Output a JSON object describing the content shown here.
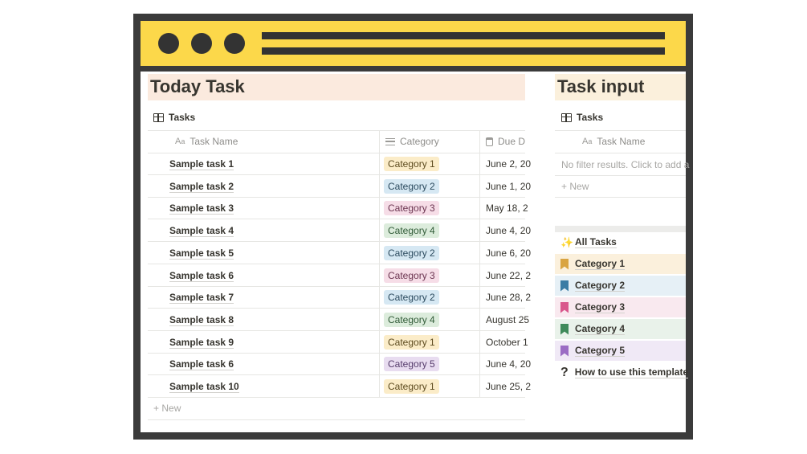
{
  "colors": {
    "titlebar": "#fcd84a",
    "frame": "#3b3b3b",
    "left_header_bg": "#fbeade",
    "right_header_bg": "#fbf0dc"
  },
  "left_panel": {
    "title": "Today Task",
    "db_title": "Tasks",
    "db_icon": "table-icon",
    "columns": [
      {
        "label": "Task Name",
        "icon": "Aa"
      },
      {
        "label": "Category",
        "icon": "list-icon"
      },
      {
        "label": "Due D",
        "icon": "calendar-icon"
      }
    ],
    "rows": [
      {
        "name": "Sample task 1",
        "category": "Category 1",
        "date": "June 2, 20"
      },
      {
        "name": "Sample task 2",
        "category": "Category 2",
        "date": "June 1, 20"
      },
      {
        "name": "Sample task 3",
        "category": "Category 3",
        "date": "May 18, 2"
      },
      {
        "name": "Sample task 4",
        "category": "Category 4",
        "date": "June 4, 20"
      },
      {
        "name": "Sample task 5",
        "category": "Category 2",
        "date": "June 6, 20"
      },
      {
        "name": "Sample task 6",
        "category": "Category 3",
        "date": "June 22, 2"
      },
      {
        "name": "Sample task 7",
        "category": "Category 2",
        "date": "June 28, 2"
      },
      {
        "name": "Sample task 8",
        "category": "Category 4",
        "date": "August 25"
      },
      {
        "name": "Sample task 9",
        "category": "Category 1",
        "date": "October 1"
      },
      {
        "name": "Sample task 6",
        "category": "Category 5",
        "date": "June 4, 20"
      },
      {
        "name": "Sample task 10",
        "category": "Category 1",
        "date": "June 25, 2"
      }
    ],
    "new_label": "New"
  },
  "category_colors": {
    "Category 1": {
      "bg": "#fbecc8",
      "fg": "#5c4a1e"
    },
    "Category 2": {
      "bg": "#d6e8f3",
      "fg": "#2b4a5e"
    },
    "Category 3": {
      "bg": "#f6dde7",
      "fg": "#6b3450"
    },
    "Category 4": {
      "bg": "#dcecdc",
      "fg": "#2f5a36"
    },
    "Category 5": {
      "bg": "#e8dcf0",
      "fg": "#553b6b"
    }
  },
  "right_panel": {
    "title": "Task input",
    "db_title": "Tasks",
    "column": "Task Name",
    "no_filter_text": "No filter results. Click to add a",
    "new_label": "New",
    "nav_items": [
      {
        "label": "All Tasks",
        "icon": "sparkle-icon",
        "bg": "#ffffff"
      },
      {
        "label": "Category 1",
        "icon": "bookmark-icon",
        "icon_color": "#d9a441",
        "bg": "#fbf0dc"
      },
      {
        "label": "Category 2",
        "icon": "bookmark-icon",
        "icon_color": "#3a7ca5",
        "bg": "#e6f0f6"
      },
      {
        "label": "Category 3",
        "icon": "bookmark-icon",
        "icon_color": "#d9578c",
        "bg": "#f9e9ef"
      },
      {
        "label": "Category 4",
        "icon": "bookmark-icon",
        "icon_color": "#3f8a5a",
        "bg": "#e9f2ea"
      },
      {
        "label": "Category 5",
        "icon": "bookmark-icon",
        "icon_color": "#9b6cc4",
        "bg": "#f0e9f6"
      },
      {
        "label": "How to use this template",
        "icon": "question-icon",
        "bg": "#ffffff"
      }
    ]
  }
}
